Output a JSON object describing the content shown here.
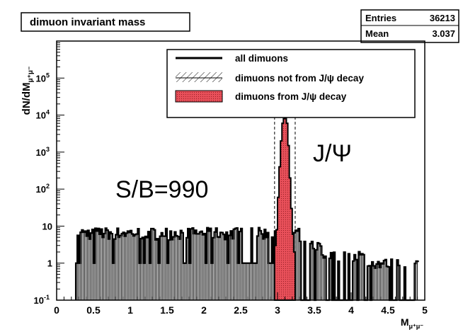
{
  "chart_data": {
    "type": "histogram",
    "title": "dimuon invariant mass",
    "stats": {
      "rows": [
        {
          "label": "Entries",
          "value": "36213"
        },
        {
          "label": "Mean",
          "value": "3.037"
        }
      ]
    },
    "xlabel": "M",
    "xlabel_sub": "μ⁺μ⁻",
    "ylabel": "dN/dM",
    "ylabel_sub": "μ⁺μ⁻",
    "xlim": [
      0,
      5
    ],
    "ylim": [
      0.1,
      1000000
    ],
    "yscale": "log",
    "x_ticks": [
      "0",
      "0.5",
      "1",
      "1.5",
      "2",
      "2.5",
      "3",
      "3.5",
      "4",
      "4.5",
      "5"
    ],
    "y_ticks": [
      {
        "base": "10",
        "exp": "-1"
      },
      {
        "base": "1",
        "exp": ""
      },
      {
        "base": "10",
        "exp": ""
      },
      {
        "base": "10",
        "exp": "2"
      },
      {
        "base": "10",
        "exp": "3"
      },
      {
        "base": "10",
        "exp": "4"
      },
      {
        "base": "10",
        "exp": "5"
      }
    ],
    "legend": {
      "position": "top-right",
      "entries": [
        {
          "label": "all dimuons",
          "style": "line"
        },
        {
          "label": "dimuons not from J/ψ decay",
          "style": "hatched"
        },
        {
          "label": "dimuons from J/ψ decay",
          "style": "filled"
        }
      ]
    },
    "annotations": {
      "sb": "S/B=990",
      "peak": "J/Ψ"
    },
    "colors": {
      "signal_fill": "#e8505a",
      "line": "#000000",
      "frame": "#000000"
    },
    "background_bins": {
      "range": [
        0.26,
        3.3
      ],
      "level": 7,
      "note_shape": "roughly flat around 5–9, with many sparse bins at 1"
    },
    "signal_peak": {
      "center": 3.1,
      "values_by_x": [
        {
          "x": 2.96,
          "y": 3
        },
        {
          "x": 2.98,
          "y": 8
        },
        {
          "x": 3.0,
          "y": 60
        },
        {
          "x": 3.02,
          "y": 400
        },
        {
          "x": 3.04,
          "y": 2000
        },
        {
          "x": 3.06,
          "y": 6000
        },
        {
          "x": 3.08,
          "y": 8000
        },
        {
          "x": 3.1,
          "y": 9000
        },
        {
          "x": 3.12,
          "y": 6000
        },
        {
          "x": 3.14,
          "y": 1500
        },
        {
          "x": 3.16,
          "y": 200
        },
        {
          "x": 3.18,
          "y": 30
        },
        {
          "x": 3.2,
          "y": 6
        },
        {
          "x": 3.22,
          "y": 2
        }
      ]
    }
  }
}
